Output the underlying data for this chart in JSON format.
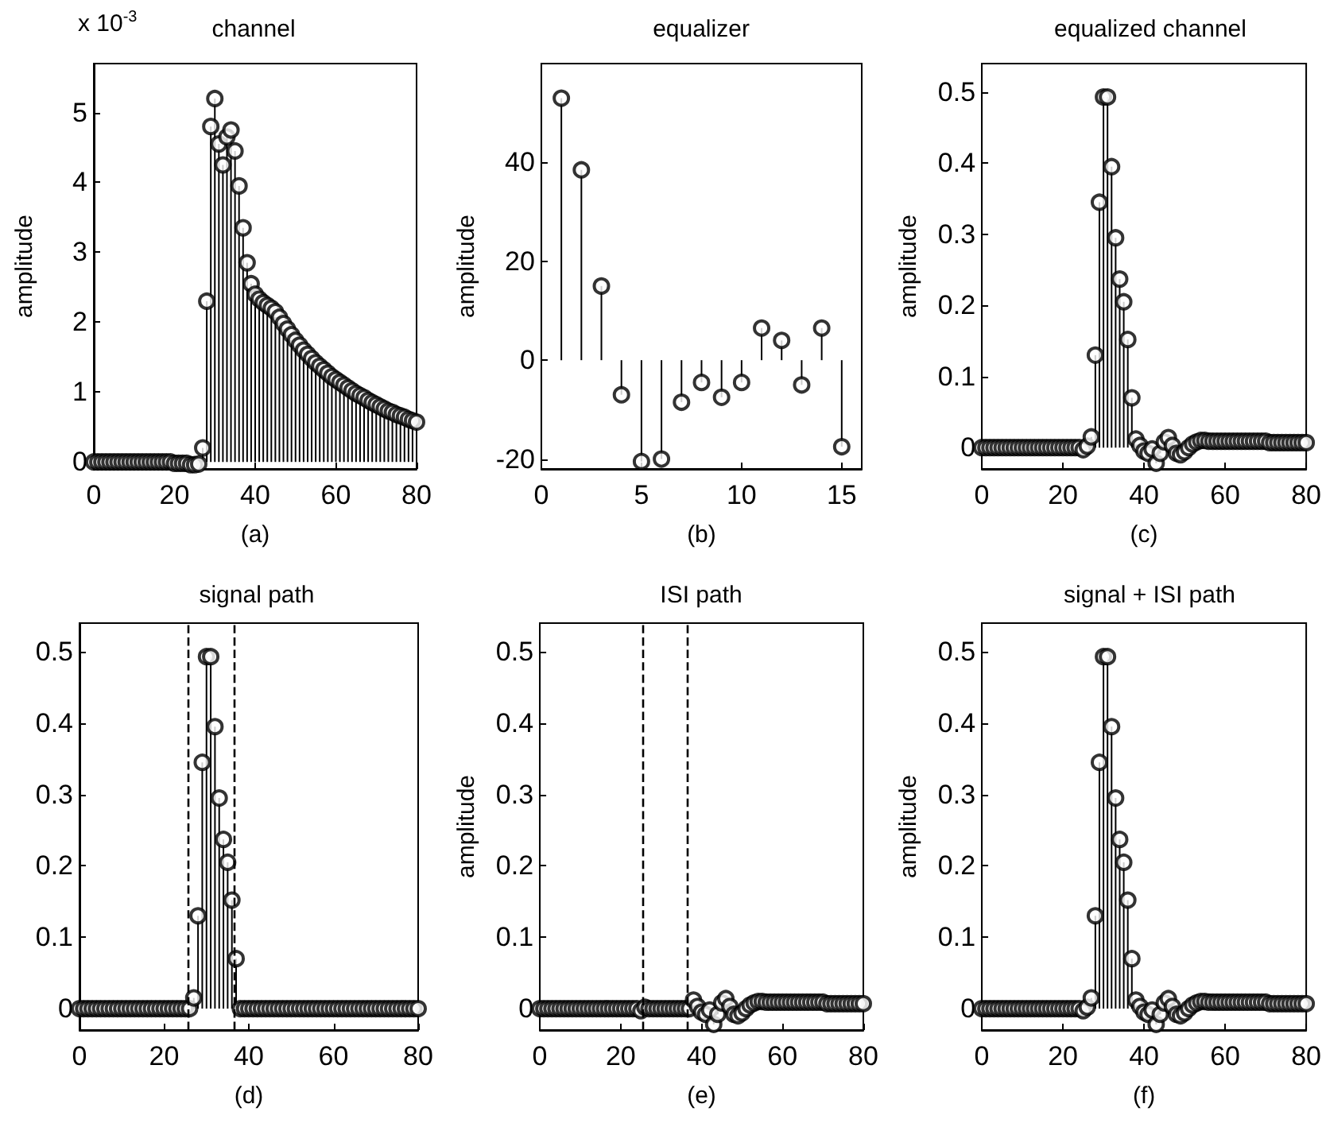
{
  "chart_data": [
    {
      "type": "lollipop",
      "title": "channel",
      "ylabel": "amplitude",
      "xlabel": "(a)",
      "annotations": [
        "x 10$^{-3}$"
      ],
      "color": "#000000",
      "marker": "circle",
      "xlim": [
        0,
        80
      ],
      "ylim": [
        -0.1,
        5.7
      ],
      "xticks": [
        0,
        20,
        40,
        60,
        80
      ],
      "yticks": [
        0,
        1,
        2,
        3,
        4,
        5
      ],
      "x": [
        0,
        1,
        2,
        3,
        4,
        5,
        6,
        7,
        8,
        9,
        10,
        11,
        12,
        13,
        14,
        15,
        16,
        17,
        18,
        19,
        20,
        21,
        22,
        23,
        24,
        25,
        26,
        27,
        28,
        29,
        30,
        31,
        32,
        33,
        34,
        35,
        36,
        37,
        38,
        39,
        40,
        41,
        42,
        43,
        44,
        45,
        46,
        47,
        48,
        49,
        50,
        51,
        52,
        53,
        54,
        55,
        56,
        57,
        58,
        59,
        60,
        61,
        62,
        63,
        64,
        65,
        66,
        67,
        68,
        69,
        70,
        71,
        72,
        73,
        74,
        75,
        76,
        77,
        78,
        79,
        80
      ],
      "values": [
        0,
        0,
        0,
        0,
        0,
        0,
        0,
        0,
        0,
        0,
        0,
        0,
        0,
        0,
        0,
        0,
        0,
        0,
        0,
        0,
        -0.02,
        -0.02,
        -0.02,
        -0.02,
        -0.04,
        -0.04,
        -0.03,
        0.2,
        2.3,
        4.8,
        5.2,
        4.55,
        4.25,
        4.65,
        4.75,
        4.45,
        3.95,
        3.35,
        2.85,
        2.55,
        2.4,
        2.33,
        2.28,
        2.24,
        2.2,
        2.15,
        2.07,
        1.98,
        1.9,
        1.82,
        1.74,
        1.67,
        1.6,
        1.54,
        1.48,
        1.42,
        1.37,
        1.32,
        1.27,
        1.22,
        1.18,
        1.14,
        1.1,
        1.06,
        1.02,
        0.98,
        0.95,
        0.92,
        0.88,
        0.85,
        0.82,
        0.79,
        0.76,
        0.73,
        0.71,
        0.68,
        0.66,
        0.64,
        0.61,
        0.59,
        0.57
      ]
    },
    {
      "type": "lollipop",
      "title": "equalizer",
      "ylabel": "amplitude",
      "xlabel": "(b)",
      "color": "#000000",
      "marker": "circle",
      "xlim": [
        0,
        16
      ],
      "ylim": [
        -22,
        60
      ],
      "xticks": [
        0,
        5,
        10,
        15
      ],
      "yticks": [
        -20,
        0,
        20,
        40
      ],
      "x": [
        1,
        2,
        3,
        4,
        5,
        6,
        7,
        8,
        9,
        10,
        11,
        12,
        13,
        14,
        15
      ],
      "values": [
        53,
        38.5,
        15,
        -7,
        -20.5,
        -20,
        -8.5,
        -4.5,
        -7.5,
        -4.5,
        6.5,
        4,
        -5,
        6.5,
        -17.5
      ]
    },
    {
      "type": "lollipop",
      "title": "equalized channel",
      "ylabel": "amplitude",
      "xlabel": "(c)",
      "color": "#000000",
      "marker": "circle",
      "xlim": [
        0,
        80
      ],
      "ylim": [
        -0.03,
        0.54
      ],
      "xticks": [
        0,
        20,
        40,
        60,
        80
      ],
      "yticks": [
        0,
        0.1,
        0.2,
        0.3,
        0.4,
        0.5
      ],
      "x": [
        0,
        1,
        2,
        3,
        4,
        5,
        6,
        7,
        8,
        9,
        10,
        11,
        12,
        13,
        14,
        15,
        16,
        17,
        18,
        19,
        20,
        21,
        22,
        23,
        24,
        25,
        26,
        27,
        28,
        29,
        30,
        31,
        32,
        33,
        34,
        35,
        36,
        37,
        38,
        39,
        40,
        41,
        42,
        43,
        44,
        45,
        46,
        47,
        48,
        49,
        50,
        51,
        52,
        53,
        54,
        55,
        56,
        57,
        58,
        59,
        60,
        61,
        62,
        63,
        64,
        65,
        66,
        67,
        68,
        69,
        70,
        71,
        72,
        73,
        74,
        75,
        76,
        77,
        78,
        79,
        80
      ],
      "values": [
        0,
        0,
        0,
        0,
        0,
        0,
        0,
        0,
        0,
        0,
        0,
        0,
        0,
        0,
        0,
        0,
        0,
        0,
        0,
        0,
        0,
        0,
        0,
        0,
        0,
        -0.003,
        0.002,
        0.015,
        0.13,
        0.345,
        0.493,
        0.493,
        0.395,
        0.295,
        0.237,
        0.205,
        0.152,
        0.07,
        0.012,
        0.003,
        -0.005,
        -0.008,
        -0.002,
        -0.022,
        -0.008,
        0.008,
        0.014,
        0.003,
        -0.008,
        -0.01,
        -0.006,
        0,
        0.005,
        0.008,
        0.01,
        0.01,
        0.009,
        0.009,
        0.009,
        0.009,
        0.009,
        0.009,
        0.009,
        0.009,
        0.009,
        0.009,
        0.009,
        0.009,
        0.009,
        0.009,
        0.009,
        0.007,
        0.007,
        0.007,
        0.007,
        0.007,
        0.007,
        0.007,
        0.007,
        0.007,
        0.007
      ]
    },
    {
      "type": "lollipop",
      "title": "signal path",
      "xlabel": "(d)",
      "color": "#000000",
      "marker": "circle",
      "xlim": [
        0,
        80
      ],
      "ylim": [
        -0.03,
        0.54
      ],
      "xticks": [
        0,
        20,
        40,
        60,
        80
      ],
      "yticks": [
        0,
        0.1,
        0.2,
        0.3,
        0.4,
        0.5
      ],
      "ref_lines": [
        {
          "axis": "x",
          "value": 25.5,
          "color": "#000000",
          "line_style": "dashed"
        },
        {
          "axis": "x",
          "value": 36.5,
          "color": "#000000",
          "line_style": "dashed"
        }
      ],
      "x": [
        0,
        1,
        2,
        3,
        4,
        5,
        6,
        7,
        8,
        9,
        10,
        11,
        12,
        13,
        14,
        15,
        16,
        17,
        18,
        19,
        20,
        21,
        22,
        23,
        24,
        25,
        26,
        27,
        28,
        29,
        30,
        31,
        32,
        33,
        34,
        35,
        36,
        37,
        38,
        39,
        40,
        41,
        42,
        43,
        44,
        45,
        46,
        47,
        48,
        49,
        50,
        51,
        52,
        53,
        54,
        55,
        56,
        57,
        58,
        59,
        60,
        61,
        62,
        63,
        64,
        65,
        66,
        67,
        68,
        69,
        70,
        71,
        72,
        73,
        74,
        75,
        76,
        77,
        78,
        79,
        80
      ],
      "values": [
        0,
        0,
        0,
        0,
        0,
        0,
        0,
        0,
        0,
        0,
        0,
        0,
        0,
        0,
        0,
        0,
        0,
        0,
        0,
        0,
        0,
        0,
        0,
        0,
        0,
        0,
        0,
        0.015,
        0.13,
        0.345,
        0.493,
        0.493,
        0.395,
        0.295,
        0.237,
        0.205,
        0.152,
        0.07,
        0,
        0,
        0,
        0,
        0,
        0,
        0,
        0,
        0,
        0,
        0,
        0,
        0,
        0,
        0,
        0,
        0,
        0,
        0,
        0,
        0,
        0,
        0,
        0,
        0,
        0,
        0,
        0,
        0,
        0,
        0,
        0,
        0,
        0,
        0,
        0,
        0,
        0,
        0,
        0,
        0,
        0,
        0
      ]
    },
    {
      "type": "lollipop",
      "title": "ISI path",
      "ylabel": "amplitude",
      "xlabel": "(e)",
      "color": "#000000",
      "marker": "circle",
      "xlim": [
        0,
        80
      ],
      "ylim": [
        -0.03,
        0.54
      ],
      "xticks": [
        0,
        20,
        40,
        60,
        80
      ],
      "yticks": [
        0,
        0.1,
        0.2,
        0.3,
        0.4,
        0.5
      ],
      "ref_lines": [
        {
          "axis": "x",
          "value": 25.5,
          "color": "#000000",
          "line_style": "dashed"
        },
        {
          "axis": "x",
          "value": 36.5,
          "color": "#000000",
          "line_style": "dashed"
        }
      ],
      "x": [
        0,
        1,
        2,
        3,
        4,
        5,
        6,
        7,
        8,
        9,
        10,
        11,
        12,
        13,
        14,
        15,
        16,
        17,
        18,
        19,
        20,
        21,
        22,
        23,
        24,
        25,
        26,
        27,
        28,
        29,
        30,
        31,
        32,
        33,
        34,
        35,
        36,
        37,
        38,
        39,
        40,
        41,
        42,
        43,
        44,
        45,
        46,
        47,
        48,
        49,
        50,
        51,
        52,
        53,
        54,
        55,
        56,
        57,
        58,
        59,
        60,
        61,
        62,
        63,
        64,
        65,
        66,
        67,
        68,
        69,
        70,
        71,
        72,
        73,
        74,
        75,
        76,
        77,
        78,
        79,
        80
      ],
      "values": [
        0,
        0,
        0,
        0,
        0,
        0,
        0,
        0,
        0,
        0,
        0,
        0,
        0,
        0,
        0,
        0,
        0,
        0,
        0,
        0,
        0,
        0,
        0,
        0,
        0,
        -0.003,
        0.002,
        0,
        0,
        0,
        0,
        0,
        0,
        0,
        0,
        0,
        0,
        0,
        0.012,
        0.003,
        -0.005,
        -0.008,
        -0.002,
        -0.022,
        -0.008,
        0.008,
        0.014,
        0.003,
        -0.008,
        -0.01,
        -0.006,
        0,
        0.005,
        0.008,
        0.01,
        0.01,
        0.009,
        0.009,
        0.009,
        0.009,
        0.009,
        0.009,
        0.009,
        0.009,
        0.009,
        0.009,
        0.009,
        0.009,
        0.009,
        0.009,
        0.009,
        0.007,
        0.007,
        0.007,
        0.007,
        0.007,
        0.007,
        0.007,
        0.007,
        0.007,
        0.007
      ]
    },
    {
      "type": "lollipop",
      "title": "signal + ISI path",
      "ylabel": "amplitude",
      "xlabel": "(f)",
      "color": "#000000",
      "marker": "circle",
      "xlim": [
        0,
        80
      ],
      "ylim": [
        -0.03,
        0.54
      ],
      "xticks": [
        0,
        20,
        40,
        60,
        80
      ],
      "yticks": [
        0,
        0.1,
        0.2,
        0.3,
        0.4,
        0.5
      ],
      "x": [
        0,
        1,
        2,
        3,
        4,
        5,
        6,
        7,
        8,
        9,
        10,
        11,
        12,
        13,
        14,
        15,
        16,
        17,
        18,
        19,
        20,
        21,
        22,
        23,
        24,
        25,
        26,
        27,
        28,
        29,
        30,
        31,
        32,
        33,
        34,
        35,
        36,
        37,
        38,
        39,
        40,
        41,
        42,
        43,
        44,
        45,
        46,
        47,
        48,
        49,
        50,
        51,
        52,
        53,
        54,
        55,
        56,
        57,
        58,
        59,
        60,
        61,
        62,
        63,
        64,
        65,
        66,
        67,
        68,
        69,
        70,
        71,
        72,
        73,
        74,
        75,
        76,
        77,
        78,
        79,
        80
      ],
      "values": [
        0,
        0,
        0,
        0,
        0,
        0,
        0,
        0,
        0,
        0,
        0,
        0,
        0,
        0,
        0,
        0,
        0,
        0,
        0,
        0,
        0,
        0,
        0,
        0,
        0,
        -0.003,
        0.002,
        0.015,
        0.13,
        0.345,
        0.493,
        0.493,
        0.395,
        0.295,
        0.237,
        0.205,
        0.152,
        0.07,
        0.012,
        0.003,
        -0.005,
        -0.008,
        -0.002,
        -0.022,
        -0.008,
        0.008,
        0.014,
        0.003,
        -0.008,
        -0.01,
        -0.006,
        0,
        0.005,
        0.008,
        0.01,
        0.01,
        0.009,
        0.009,
        0.009,
        0.009,
        0.009,
        0.009,
        0.009,
        0.009,
        0.009,
        0.009,
        0.009,
        0.009,
        0.009,
        0.009,
        0.009,
        0.007,
        0.007,
        0.007,
        0.007,
        0.007,
        0.007,
        0.007,
        0.007,
        0.007,
        0.007
      ]
    }
  ]
}
